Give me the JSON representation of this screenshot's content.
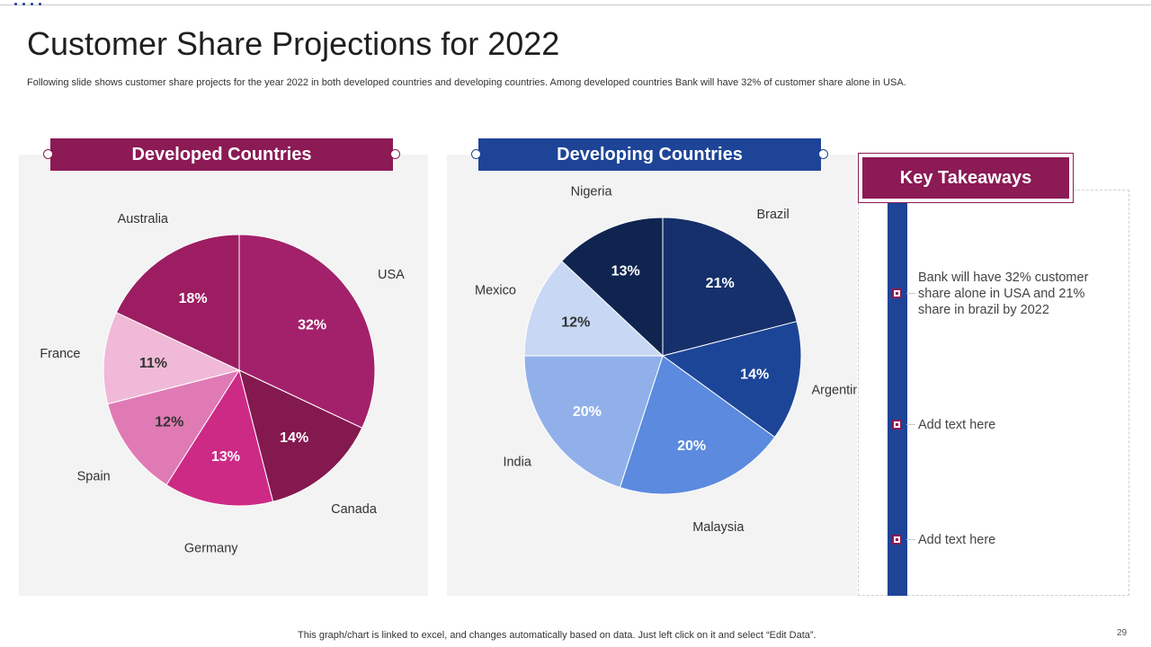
{
  "slide": {
    "title": "Customer Share Projections for 2022",
    "subtitle": "Following slide shows customer share projects for the year 2022 in both developed countries and developing countries. Among developed countries Bank will have 32% of customer share alone in USA.",
    "footer": "This graph/chart is linked to excel, and changes automatically based on data. Just left click on it and select “Edit Data”.",
    "page_number": "29"
  },
  "chart_data": [
    {
      "type": "pie",
      "title": "Developed Countries",
      "slices": [
        {
          "label": "USA",
          "value": 32,
          "value_label": "32%",
          "color": "#a3216b"
        },
        {
          "label": "Canada",
          "value": 14,
          "value_label": "14%",
          "color": "#84194f"
        },
        {
          "label": "Germany",
          "value": 13,
          "value_label": "13%",
          "color": "#cd2a86"
        },
        {
          "label": "Spain",
          "value": 12,
          "value_label": "12%",
          "color": "#e07ab4"
        },
        {
          "label": "France",
          "value": 11,
          "value_label": "11%",
          "color": "#f0b9d7"
        },
        {
          "label": "Australia",
          "value": 18,
          "value_label": "18%",
          "color": "#9c1d62"
        }
      ]
    },
    {
      "type": "pie",
      "title": "Developing Countries",
      "slices": [
        {
          "label": "Brazil",
          "value": 21,
          "value_label": "21%",
          "color": "#16306b"
        },
        {
          "label": "Argentina",
          "value": 14,
          "value_label": "14%",
          "color": "#1c4597"
        },
        {
          "label": "Malaysia",
          "value": 20,
          "value_label": "20%",
          "color": "#5b8ade"
        },
        {
          "label": "India",
          "value": 20,
          "value_label": "20%",
          "color": "#91b0ea"
        },
        {
          "label": "Mexico",
          "value": 12,
          "value_label": "12%",
          "color": "#c8d7f3"
        },
        {
          "label": "Nigeria",
          "value": 13,
          "value_label": "13%",
          "color": "#0f2550"
        }
      ]
    }
  ],
  "takeaways": {
    "title": "Key Takeaways",
    "items": [
      "Bank will have 32% customer share alone in USA and 21% share in brazil by 2022",
      "Add text here",
      "Add text here"
    ]
  },
  "colors": {
    "developed_accent": "#8b1a55",
    "developing_accent": "#1d4497"
  }
}
